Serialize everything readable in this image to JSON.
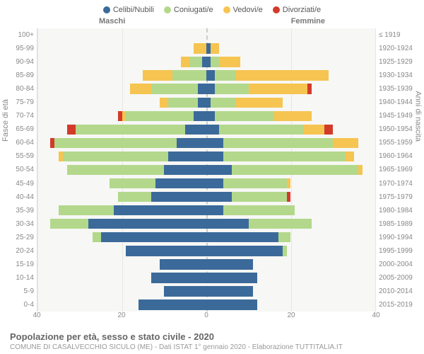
{
  "chart": {
    "type": "population-pyramid",
    "legend": [
      {
        "label": "Celibi/Nubili",
        "color": "#3b6a9a"
      },
      {
        "label": "Coniugati/e",
        "color": "#b3d88b"
      },
      {
        "label": "Vedovi/e",
        "color": "#f6c451"
      },
      {
        "label": "Divorziati/e",
        "color": "#d23b2a"
      }
    ],
    "columns": {
      "left": "Maschi",
      "right": "Femmine"
    },
    "y_left_title": "Fasce di età",
    "y_right_title": "Anni di nascita",
    "x_max": 40,
    "x_ticks": [
      40,
      20,
      0,
      20,
      40
    ],
    "background_color": "#f7f7f5",
    "gridline_color": "#e6e6e4",
    "centerline_color": "#cccccc",
    "tick_fontsize": 10,
    "label_fontsize": 11,
    "rows": [
      {
        "age": "100+",
        "birth": "≤ 1919",
        "m": {
          "c": 0,
          "s": 0,
          "v": 0,
          "d": 0
        },
        "f": {
          "c": 0,
          "s": 0,
          "v": 0,
          "d": 0
        }
      },
      {
        "age": "95-99",
        "birth": "1920-1924",
        "m": {
          "c": 0,
          "s": 0,
          "v": 3,
          "d": 0
        },
        "f": {
          "c": 1,
          "s": 0,
          "v": 2,
          "d": 0
        }
      },
      {
        "age": "90-94",
        "birth": "1925-1929",
        "m": {
          "c": 1,
          "s": 3,
          "v": 2,
          "d": 0
        },
        "f": {
          "c": 1,
          "s": 2,
          "v": 5,
          "d": 0
        }
      },
      {
        "age": "85-89",
        "birth": "1930-1934",
        "m": {
          "c": 0,
          "s": 8,
          "v": 7,
          "d": 0
        },
        "f": {
          "c": 2,
          "s": 5,
          "v": 22,
          "d": 0
        }
      },
      {
        "age": "80-84",
        "birth": "1935-1939",
        "m": {
          "c": 2,
          "s": 11,
          "v": 5,
          "d": 0
        },
        "f": {
          "c": 2,
          "s": 8,
          "v": 14,
          "d": 1
        }
      },
      {
        "age": "75-79",
        "birth": "1940-1944",
        "m": {
          "c": 2,
          "s": 7,
          "v": 2,
          "d": 0
        },
        "f": {
          "c": 1,
          "s": 6,
          "v": 11,
          "d": 0
        }
      },
      {
        "age": "70-74",
        "birth": "1945-1949",
        "m": {
          "c": 3,
          "s": 16,
          "v": 1,
          "d": 1
        },
        "f": {
          "c": 2,
          "s": 14,
          "v": 9,
          "d": 0
        }
      },
      {
        "age": "65-69",
        "birth": "1950-1954",
        "m": {
          "c": 5,
          "s": 26,
          "v": 0,
          "d": 2
        },
        "f": {
          "c": 3,
          "s": 20,
          "v": 5,
          "d": 2
        }
      },
      {
        "age": "60-64",
        "birth": "1955-1959",
        "m": {
          "c": 7,
          "s": 29,
          "v": 0,
          "d": 1
        },
        "f": {
          "c": 4,
          "s": 26,
          "v": 6,
          "d": 0
        }
      },
      {
        "age": "55-59",
        "birth": "1960-1964",
        "m": {
          "c": 9,
          "s": 25,
          "v": 1,
          "d": 0
        },
        "f": {
          "c": 4,
          "s": 29,
          "v": 2,
          "d": 0
        }
      },
      {
        "age": "50-54",
        "birth": "1965-1969",
        "m": {
          "c": 10,
          "s": 23,
          "v": 0,
          "d": 0
        },
        "f": {
          "c": 6,
          "s": 30,
          "v": 1,
          "d": 0
        }
      },
      {
        "age": "45-49",
        "birth": "1970-1974",
        "m": {
          "c": 12,
          "s": 11,
          "v": 0,
          "d": 0
        },
        "f": {
          "c": 4,
          "s": 15,
          "v": 1,
          "d": 0
        }
      },
      {
        "age": "40-44",
        "birth": "1975-1979",
        "m": {
          "c": 13,
          "s": 8,
          "v": 0,
          "d": 0
        },
        "f": {
          "c": 6,
          "s": 13,
          "v": 0,
          "d": 1
        }
      },
      {
        "age": "35-39",
        "birth": "1980-1984",
        "m": {
          "c": 22,
          "s": 13,
          "v": 0,
          "d": 0
        },
        "f": {
          "c": 4,
          "s": 17,
          "v": 0,
          "d": 0
        }
      },
      {
        "age": "30-34",
        "birth": "1985-1989",
        "m": {
          "c": 28,
          "s": 9,
          "v": 0,
          "d": 0
        },
        "f": {
          "c": 10,
          "s": 15,
          "v": 0,
          "d": 0
        }
      },
      {
        "age": "25-29",
        "birth": "1990-1994",
        "m": {
          "c": 25,
          "s": 2,
          "v": 0,
          "d": 0
        },
        "f": {
          "c": 17,
          "s": 3,
          "v": 0,
          "d": 0
        }
      },
      {
        "age": "20-24",
        "birth": "1995-1999",
        "m": {
          "c": 19,
          "s": 0,
          "v": 0,
          "d": 0
        },
        "f": {
          "c": 18,
          "s": 1,
          "v": 0,
          "d": 0
        }
      },
      {
        "age": "15-19",
        "birth": "2000-2004",
        "m": {
          "c": 11,
          "s": 0,
          "v": 0,
          "d": 0
        },
        "f": {
          "c": 11,
          "s": 0,
          "v": 0,
          "d": 0
        }
      },
      {
        "age": "10-14",
        "birth": "2005-2009",
        "m": {
          "c": 13,
          "s": 0,
          "v": 0,
          "d": 0
        },
        "f": {
          "c": 12,
          "s": 0,
          "v": 0,
          "d": 0
        }
      },
      {
        "age": "5-9",
        "birth": "2010-2014",
        "m": {
          "c": 10,
          "s": 0,
          "v": 0,
          "d": 0
        },
        "f": {
          "c": 11,
          "s": 0,
          "v": 0,
          "d": 0
        }
      },
      {
        "age": "0-4",
        "birth": "2015-2019",
        "m": {
          "c": 16,
          "s": 0,
          "v": 0,
          "d": 0
        },
        "f": {
          "c": 12,
          "s": 0,
          "v": 0,
          "d": 0
        }
      }
    ],
    "grid_positions": [
      0,
      25,
      50,
      75,
      100
    ]
  },
  "footer": {
    "title": "Popolazione per età, sesso e stato civile - 2020",
    "subtitle": "COMUNE DI CASALVECCHIO SICULO (ME) - Dati ISTAT 1° gennaio 2020 - Elaborazione TUTTITALIA.IT"
  }
}
